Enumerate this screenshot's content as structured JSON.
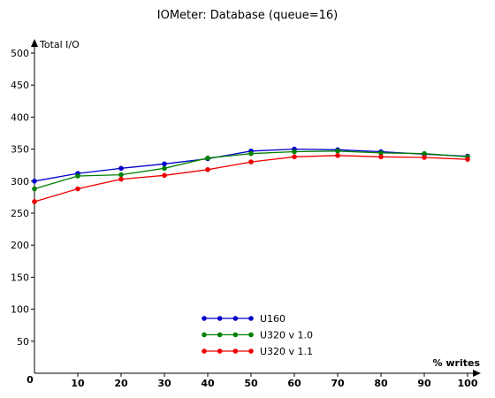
{
  "chart_data": {
    "type": "line",
    "title": "IOMeter: Database (queue=16)",
    "xlabel": "% writes",
    "ylabel": "Total I/O",
    "x": [
      0,
      10,
      20,
      30,
      40,
      50,
      60,
      70,
      80,
      90,
      100
    ],
    "xlim": [
      0,
      100
    ],
    "ylim": [
      0,
      500
    ],
    "xticks": [
      10,
      20,
      30,
      40,
      50,
      60,
      70,
      80,
      90,
      100
    ],
    "yticks": [
      50,
      100,
      150,
      200,
      250,
      300,
      350,
      400,
      450,
      500
    ],
    "origin_label": "0",
    "grid": false,
    "legend_position": "bottom-center",
    "series": [
      {
        "name": "U160",
        "color": "#0000cc",
        "values": [
          300,
          312,
          320,
          327,
          335,
          347,
          350,
          349,
          346,
          342,
          339
        ]
      },
      {
        "name": "U320 v 1.0",
        "color": "#008000",
        "values": [
          288,
          308,
          310,
          320,
          336,
          343,
          346,
          347,
          344,
          343,
          338
        ]
      },
      {
        "name": "U320 v 1.1",
        "color": "#ee0000",
        "values": [
          268,
          288,
          303,
          309,
          318,
          330,
          338,
          340,
          338,
          337,
          334
        ]
      }
    ]
  }
}
